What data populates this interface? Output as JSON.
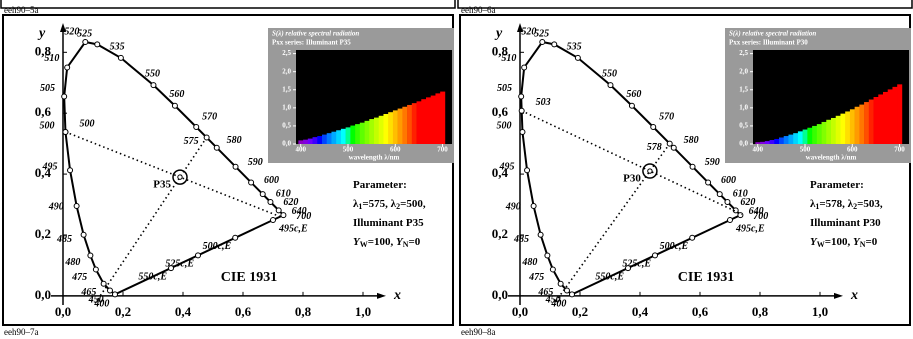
{
  "page": {
    "labels": [
      "eeh90–5a",
      "eeh90–6a",
      "eeh90–7a",
      "eeh90–8a"
    ]
  },
  "chart_data": [
    {
      "type": "chromaticity",
      "title": "CIE 1931",
      "x_label": "x",
      "y_label": "y",
      "xlim": [
        -0.04,
        1.03
      ],
      "ylim": [
        -0.03,
        0.87
      ],
      "xticks": [
        {
          "value": 0,
          "label": "0,0"
        },
        {
          "value": 0.2,
          "label": "0,2"
        },
        {
          "value": 0.4,
          "label": "0,4"
        },
        {
          "value": 0.6,
          "label": "0,6"
        },
        {
          "value": 0.8,
          "label": "0,8"
        },
        {
          "value": 1,
          "label": "1,0"
        }
      ],
      "yticks": [
        {
          "value": 0,
          "label": "0,0"
        },
        {
          "value": 0.2,
          "label": "0,2"
        },
        {
          "value": 0.4,
          "label": "0,4"
        },
        {
          "value": 0.6,
          "label": "0,6"
        },
        {
          "value": 0.8,
          "label": "0,8"
        }
      ],
      "locus": {
        "labels": [
          400,
          450,
          465,
          475,
          480,
          485,
          490,
          495,
          500,
          505,
          510,
          520,
          525,
          535,
          550,
          560,
          570,
          580,
          590,
          600,
          610,
          620,
          640,
          700
        ],
        "x": [
          0.1733,
          0.1566,
          0.1355,
          0.1096,
          0.0913,
          0.0687,
          0.0454,
          0.0235,
          0.0082,
          0.0039,
          0.0139,
          0.0743,
          0.1142,
          0.1929,
          0.3016,
          0.3731,
          0.4441,
          0.5125,
          0.5752,
          0.627,
          0.6658,
          0.6915,
          0.719,
          0.7347
        ],
        "y": [
          0.0048,
          0.0177,
          0.0399,
          0.0868,
          0.1327,
          0.2007,
          0.295,
          0.4127,
          0.5384,
          0.6548,
          0.7502,
          0.8338,
          0.8262,
          0.7816,
          0.6923,
          0.6245,
          0.5547,
          0.4866,
          0.4242,
          0.3725,
          0.334,
          0.3083,
          0.2809,
          0.2653
        ]
      },
      "purple": {
        "labels": [
          "495c,E",
          "500c,E",
          "525c,E",
          "550c,E"
        ],
        "x": [
          0.7,
          0.574,
          0.45,
          0.36
        ],
        "y": [
          0.249,
          0.191,
          0.133,
          0.091
        ]
      },
      "dominant": {
        "labels": [
          575,
          500
        ],
        "x": [
          0.4788,
          0.0082
        ],
        "y": [
          0.5202,
          0.5384
        ]
      },
      "illuminant": {
        "label": "P35",
        "x": 0.39,
        "y": 0.39
      },
      "parameters": [
        {
          "bold": true,
          "parts": [
            {
              "text": "Parameter:"
            }
          ]
        },
        {
          "bold": false,
          "parts": [
            {
              "text": "λ"
            },
            {
              "text": "1",
              "sub": true
            },
            {
              "text": "=575, λ"
            },
            {
              "text": "2",
              "sub": true
            },
            {
              "text": "=500,"
            }
          ]
        },
        {
          "bold": true,
          "parts": [
            {
              "text": "Illuminant P35"
            }
          ]
        },
        {
          "bold": true,
          "parts": [
            {
              "text": "Y",
              "italic": true
            },
            {
              "text": "W",
              "sub": true
            },
            {
              "text": "=100, "
            },
            {
              "text": "Y",
              "italic": true
            },
            {
              "text": "N",
              "sub": true
            },
            {
              "text": "=0"
            }
          ]
        }
      ],
      "inset": {
        "title": "S(λ) relative spectral radiation",
        "subtitle": "Pxx series: Illuminant P35",
        "x_label": "wavelength λ/nm",
        "xlim": [
          390,
          720
        ],
        "ylim": [
          0,
          2.6
        ],
        "xticks": [
          400,
          500,
          600,
          700
        ],
        "yticks": [
          {
            "value": 0,
            "label": "0,0"
          },
          {
            "value": 0.5,
            "label": "0,5"
          },
          {
            "value": 1,
            "label": "1,0"
          },
          {
            "value": 1.5,
            "label": "1,5"
          },
          {
            "value": 2,
            "label": "2,0"
          },
          {
            "value": 2.5,
            "label": "2,5"
          }
        ],
        "x": [
          400,
          410,
          420,
          430,
          440,
          450,
          460,
          470,
          480,
          490,
          500,
          510,
          520,
          530,
          540,
          550,
          560,
          570,
          580,
          590,
          600,
          610,
          620,
          630,
          640,
          650,
          660,
          670,
          680,
          690,
          700
        ],
        "values": [
          0.1,
          0.12,
          0.15,
          0.19,
          0.22,
          0.26,
          0.3,
          0.34,
          0.38,
          0.42,
          0.46,
          0.51,
          0.55,
          0.59,
          0.64,
          0.69,
          0.73,
          0.78,
          0.83,
          0.88,
          0.93,
          0.98,
          1.03,
          1.08,
          1.13,
          1.18,
          1.24,
          1.29,
          1.34,
          1.4,
          1.45
        ]
      }
    },
    {
      "type": "chromaticity",
      "title": "CIE 1931",
      "x_label": "x",
      "y_label": "y",
      "xlim": [
        -0.04,
        1.03
      ],
      "ylim": [
        -0.03,
        0.87
      ],
      "xticks": [
        {
          "value": 0,
          "label": "0,0"
        },
        {
          "value": 0.2,
          "label": "0,2"
        },
        {
          "value": 0.4,
          "label": "0,4"
        },
        {
          "value": 0.6,
          "label": "0,6"
        },
        {
          "value": 0.8,
          "label": "0,8"
        },
        {
          "value": 1,
          "label": "1,0"
        }
      ],
      "yticks": [
        {
          "value": 0,
          "label": "0,0"
        },
        {
          "value": 0.2,
          "label": "0,2"
        },
        {
          "value": 0.4,
          "label": "0,4"
        },
        {
          "value": 0.6,
          "label": "0,6"
        },
        {
          "value": 0.8,
          "label": "0,8"
        }
      ],
      "locus": {
        "labels": [
          400,
          450,
          465,
          475,
          480,
          485,
          490,
          495,
          500,
          505,
          510,
          520,
          525,
          535,
          550,
          560,
          570,
          580,
          590,
          600,
          610,
          620,
          640,
          700
        ],
        "x": [
          0.1733,
          0.1566,
          0.1355,
          0.1096,
          0.0913,
          0.0687,
          0.0454,
          0.0235,
          0.0082,
          0.0039,
          0.0139,
          0.0743,
          0.1142,
          0.1929,
          0.3016,
          0.3731,
          0.4441,
          0.5125,
          0.5752,
          0.627,
          0.6658,
          0.6915,
          0.719,
          0.7347
        ],
        "y": [
          0.0048,
          0.0177,
          0.0399,
          0.0868,
          0.1327,
          0.2007,
          0.295,
          0.4127,
          0.5384,
          0.6548,
          0.7502,
          0.8338,
          0.8262,
          0.7816,
          0.6923,
          0.6245,
          0.5547,
          0.4866,
          0.4242,
          0.3725,
          0.334,
          0.3083,
          0.2809,
          0.2653
        ]
      },
      "purple": {
        "labels": [
          "495c,E",
          "500c,E",
          "525c,E",
          "550c,E"
        ],
        "x": [
          0.7,
          0.574,
          0.45,
          0.36
        ],
        "y": [
          0.249,
          0.191,
          0.133,
          0.091
        ]
      },
      "dominant": {
        "labels": [
          578,
          503
        ],
        "x": [
          0.499,
          0.0056
        ],
        "y": [
          0.5,
          0.608
        ]
      },
      "illuminant": {
        "label": "P30",
        "x": 0.433,
        "y": 0.41
      },
      "parameters": [
        {
          "bold": true,
          "parts": [
            {
              "text": "Parameter:"
            }
          ]
        },
        {
          "bold": false,
          "parts": [
            {
              "text": "λ"
            },
            {
              "text": "1",
              "sub": true
            },
            {
              "text": "=578, λ"
            },
            {
              "text": "2",
              "sub": true
            },
            {
              "text": "=503,"
            }
          ]
        },
        {
          "bold": true,
          "parts": [
            {
              "text": "Illuminant P30"
            }
          ]
        },
        {
          "bold": true,
          "parts": [
            {
              "text": "Y",
              "italic": true
            },
            {
              "text": "W",
              "sub": true
            },
            {
              "text": "=100, "
            },
            {
              "text": "Y",
              "italic": true
            },
            {
              "text": "N",
              "sub": true
            },
            {
              "text": "=0"
            }
          ]
        }
      ],
      "inset": {
        "title": "S(λ) relative spectral radiation",
        "subtitle": "Pxx series: Illuminant P30",
        "x_label": "wavelength λ/nm",
        "xlim": [
          390,
          720
        ],
        "ylim": [
          0,
          2.6
        ],
        "xticks": [
          400,
          500,
          600,
          700
        ],
        "yticks": [
          {
            "value": 0,
            "label": "0,0"
          },
          {
            "value": 0.5,
            "label": "0,5"
          },
          {
            "value": 1,
            "label": "1,0"
          },
          {
            "value": 1.5,
            "label": "1,5"
          },
          {
            "value": 2,
            "label": "2,0"
          },
          {
            "value": 2.5,
            "label": "2,5"
          }
        ],
        "x": [
          400,
          410,
          420,
          430,
          440,
          450,
          460,
          470,
          480,
          490,
          500,
          510,
          520,
          530,
          540,
          550,
          560,
          570,
          580,
          590,
          600,
          610,
          620,
          630,
          640,
          650,
          660,
          670,
          680,
          690,
          700
        ],
        "values": [
          0.05,
          0.06,
          0.08,
          0.11,
          0.14,
          0.18,
          0.22,
          0.26,
          0.3,
          0.35,
          0.4,
          0.45,
          0.5,
          0.55,
          0.61,
          0.67,
          0.72,
          0.78,
          0.84,
          0.9,
          0.96,
          1.03,
          1.09,
          1.16,
          1.23,
          1.3,
          1.37,
          1.44,
          1.51,
          1.58,
          1.65
        ]
      }
    }
  ]
}
